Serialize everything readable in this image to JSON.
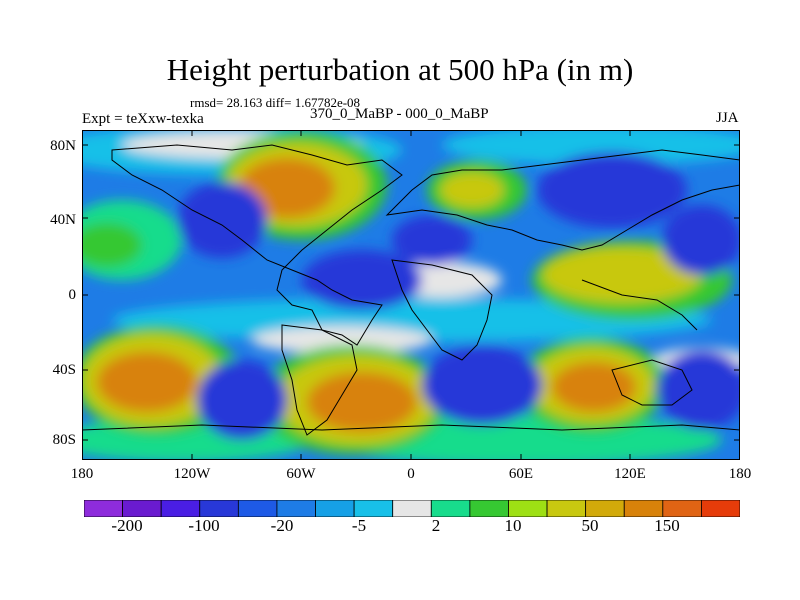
{
  "title": "Height perturbation at 500 hPa (in m)",
  "stats_line": "rmsd= 28.163 diff= 1.67782e-08",
  "expt_line": "Expt = teXxw-texka",
  "comparison": "370_0_MaBP - 000_0_MaBP",
  "season": "JJA",
  "lat_labels": [
    "80N",
    "40N",
    "0",
    "40S",
    "80S"
  ],
  "lon_labels": [
    "180",
    "120W",
    "60W",
    "0",
    "60E",
    "120E",
    "180"
  ],
  "colorbar": {
    "colors": [
      "#8e2cdc",
      "#6a1bd0",
      "#4a1ee4",
      "#2838d8",
      "#1e5ae6",
      "#1e7ce6",
      "#16a0e6",
      "#18c0e8",
      "#e6e6e6",
      "#18dc8c",
      "#36c832",
      "#9ee014",
      "#c8c810",
      "#d2aa0a",
      "#d8820a",
      "#e06414",
      "#e63c0a"
    ],
    "labels": [
      "-200",
      "-100",
      "-20",
      "-5",
      "2",
      "10",
      "50",
      "150"
    ]
  },
  "field_colors": {
    "strong_neg": "#2838d8",
    "neg": "#1e7ce6",
    "weak_neg": "#18c0e8",
    "neutral": "#e6e6e6",
    "weak_pos": "#18dc8c",
    "pos_green": "#36c832",
    "pos_yellow": "#c8c810",
    "strong_pos": "#d8820a"
  }
}
